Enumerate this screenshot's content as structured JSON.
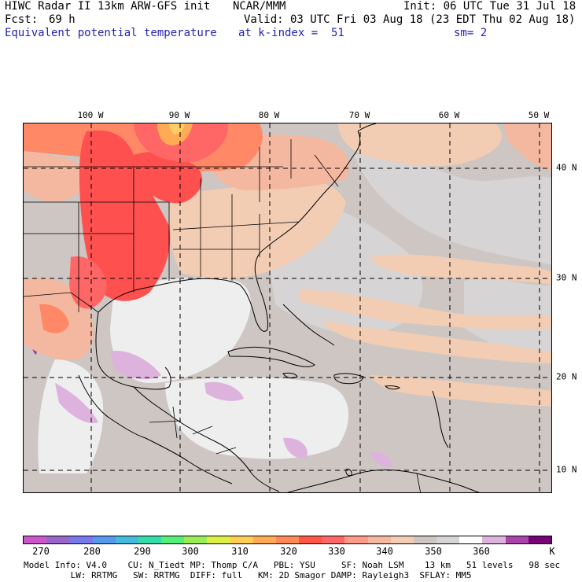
{
  "header": {
    "line1_left": "HIWC Radar II 13km ARW-GFS init",
    "line1_mid": "NCAR/MMM",
    "line1_right": "Init: 06 UTC Tue 31 Jul 18",
    "fcst_label": "Fcst:",
    "fcst_value": "69 h",
    "valid": "Valid: 03 UTC Fri 03 Aug 18 (23 EDT Thu 02 Aug 18)",
    "field": "Equivalent potential temperature",
    "level": "at k-index =  51",
    "smooth": "sm= 2"
  },
  "axes": {
    "lon_labels": [
      "100 W",
      "90 W",
      "80 W",
      "70 W",
      "60 W",
      "50 W"
    ],
    "lat_labels": [
      "40 N",
      "30 N",
      "20 N",
      "10 N"
    ]
  },
  "colorbar": {
    "colors": [
      "#cc55cc",
      "#9966cc",
      "#7777ee",
      "#5599ee",
      "#44bbdd",
      "#33ddaa",
      "#55ee77",
      "#99ee55",
      "#ddee44",
      "#ffcc55",
      "#ffaa55",
      "#ff8855",
      "#ff5544",
      "#ff6666",
      "#ff9988",
      "#f4b8a0",
      "#f2cdb4",
      "#cdc6c2",
      "#d6d4d4",
      "#ffffff",
      "#ddb3dd",
      "#aa44aa",
      "#770077"
    ],
    "labels": [
      "270",
      "280",
      "290",
      "300",
      "310",
      "320",
      "330",
      "340",
      "350",
      "360",
      "K"
    ]
  },
  "palette": {
    "ocean_gray": "#cdc6c2",
    "light_gray": "#d6d4d4",
    "near_white": "#eeeeee",
    "peach": "#f2cdb4",
    "salmon": "#f4b8a0",
    "red": "#ff5050",
    "orange": "#ff8866",
    "yellow": "#ffcc66",
    "lilac": "#ddb3dd",
    "purple": "#aa44aa"
  },
  "footer": {
    "line1": "Model Info: V4.0    CU: N_Tiedt MP: Thomp C/A   PBL: YSU     SF: Noah LSM    13 km   51 levels   98 sec",
    "line2": "         LW: RRTMG   SW: RRTMG  DIFF: full   KM: 2D Smagor DAMP: Rayleigh3  SFLAY: MM5"
  }
}
